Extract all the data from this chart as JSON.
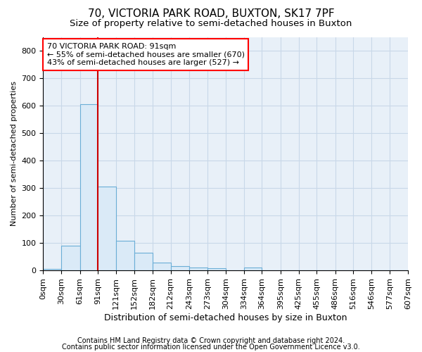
{
  "title1": "70, VICTORIA PARK ROAD, BUXTON, SK17 7PF",
  "title2": "Size of property relative to semi-detached houses in Buxton",
  "xlabel": "Distribution of semi-detached houses by size in Buxton",
  "ylabel": "Number of semi-detached properties",
  "annotation_line1": "70 VICTORIA PARK ROAD: 91sqm",
  "annotation_line2": "← 55% of semi-detached houses are smaller (670)",
  "annotation_line3": "43% of semi-detached houses are larger (527) →",
  "footnote1": "Contains HM Land Registry data © Crown copyright and database right 2024.",
  "footnote2": "Contains public sector information licensed under the Open Government Licence v3.0.",
  "property_size": 91,
  "bin_edges": [
    0,
    30,
    61,
    91,
    121,
    152,
    182,
    212,
    243,
    273,
    304,
    334,
    364,
    395,
    425,
    455,
    486,
    516,
    546,
    577,
    607
  ],
  "bar_heights": [
    5,
    90,
    605,
    305,
    108,
    65,
    28,
    15,
    10,
    8,
    0,
    10,
    0,
    0,
    0,
    0,
    0,
    0,
    0,
    0
  ],
  "bar_color": "#daeaf7",
  "bar_edge_color": "#6aaed6",
  "vline_color": "#cc0000",
  "grid_color": "#c8d8e8",
  "background_color": "#ffffff",
  "plot_bg_color": "#e8f0f8",
  "ylim": [
    0,
    850
  ],
  "yticks": [
    0,
    100,
    200,
    300,
    400,
    500,
    600,
    700,
    800
  ],
  "title1_fontsize": 11,
  "title2_fontsize": 9.5,
  "xlabel_fontsize": 9,
  "ylabel_fontsize": 8,
  "tick_fontsize": 8,
  "annotation_fontsize": 8,
  "footnote_fontsize": 7
}
